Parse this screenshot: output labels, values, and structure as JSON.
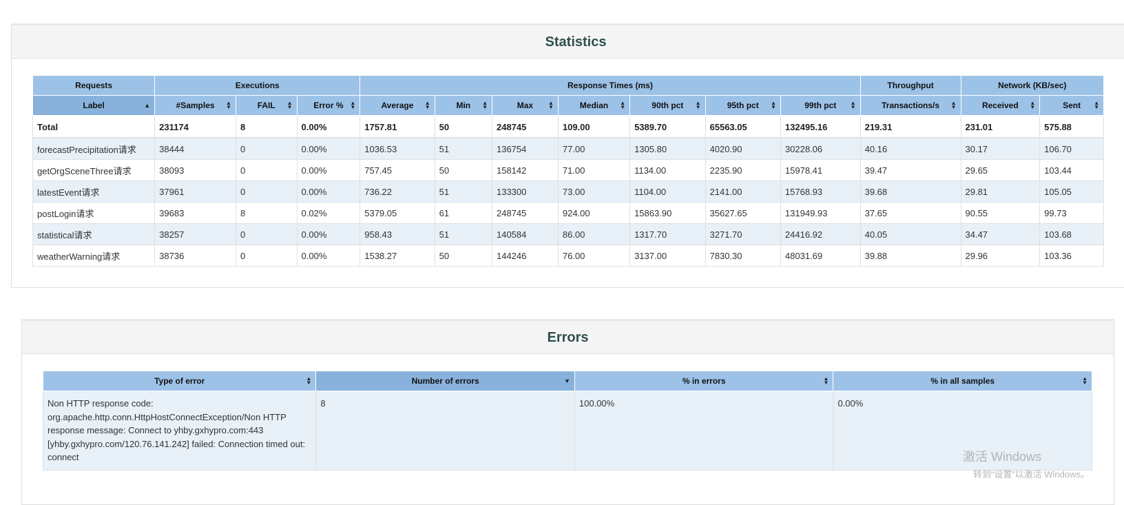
{
  "statistics": {
    "title": "Statistics",
    "groups": [
      "Requests",
      "Executions",
      "Response Times (ms)",
      "Throughput",
      "Network (KB/sec)"
    ],
    "columns": [
      "Label",
      "#Samples",
      "FAIL",
      "Error %",
      "Average",
      "Min",
      "Max",
      "Median",
      "90th pct",
      "95th pct",
      "99th pct",
      "Transactions/s",
      "Received",
      "Sent"
    ],
    "sorted_column": "Label",
    "sort_direction": "ascending",
    "total": [
      "Total",
      "231174",
      "8",
      "0.00%",
      "1757.81",
      "50",
      "248745",
      "109.00",
      "5389.70",
      "65563.05",
      "132495.16",
      "219.31",
      "231.01",
      "575.88"
    ],
    "rows": [
      [
        "forecastPrecipitation请求",
        "38444",
        "0",
        "0.00%",
        "1036.53",
        "51",
        "136754",
        "77.00",
        "1305.80",
        "4020.90",
        "30228.06",
        "40.16",
        "30.17",
        "106.70"
      ],
      [
        "getOrgSceneThree请求",
        "38093",
        "0",
        "0.00%",
        "757.45",
        "50",
        "158142",
        "71.00",
        "1134.00",
        "2235.90",
        "15978.41",
        "39.47",
        "29.65",
        "103.44"
      ],
      [
        "latestEvent请求",
        "37961",
        "0",
        "0.00%",
        "736.22",
        "51",
        "133300",
        "73.00",
        "1104.00",
        "2141.00",
        "15768.93",
        "39.68",
        "29.81",
        "105.05"
      ],
      [
        "postLogin请求",
        "39683",
        "8",
        "0.02%",
        "5379.05",
        "61",
        "248745",
        "924.00",
        "15863.90",
        "35627.65",
        "131949.93",
        "37.65",
        "90.55",
        "99.73"
      ],
      [
        "statistical请求",
        "38257",
        "0",
        "0.00%",
        "958.43",
        "51",
        "140584",
        "86.00",
        "1317.70",
        "3271.70",
        "24416.92",
        "40.05",
        "34.47",
        "103.68"
      ],
      [
        "weatherWarning请求",
        "38736",
        "0",
        "0.00%",
        "1538.27",
        "50",
        "144246",
        "76.00",
        "3137.00",
        "7830.30",
        "48031.69",
        "39.88",
        "29.96",
        "103.36"
      ]
    ]
  },
  "errors": {
    "title": "Errors",
    "columns": [
      "Type of error",
      "Number of errors",
      "% in errors",
      "% in all samples"
    ],
    "sorted_column": "Number of errors",
    "sort_direction": "descending",
    "rows": [
      [
        "Non HTTP response code: org.apache.http.conn.HttpHostConnectException/Non HTTP response message: Connect to yhby.gxhypro.com:443 [yhby.gxhypro.com/120.76.141.242] failed: Connection timed out: connect",
        "8",
        "100.00%",
        "0.00%"
      ]
    ]
  },
  "watermark": {
    "line1": "激活 Windows",
    "line2": "转到“设置”以激活 Windows。"
  }
}
